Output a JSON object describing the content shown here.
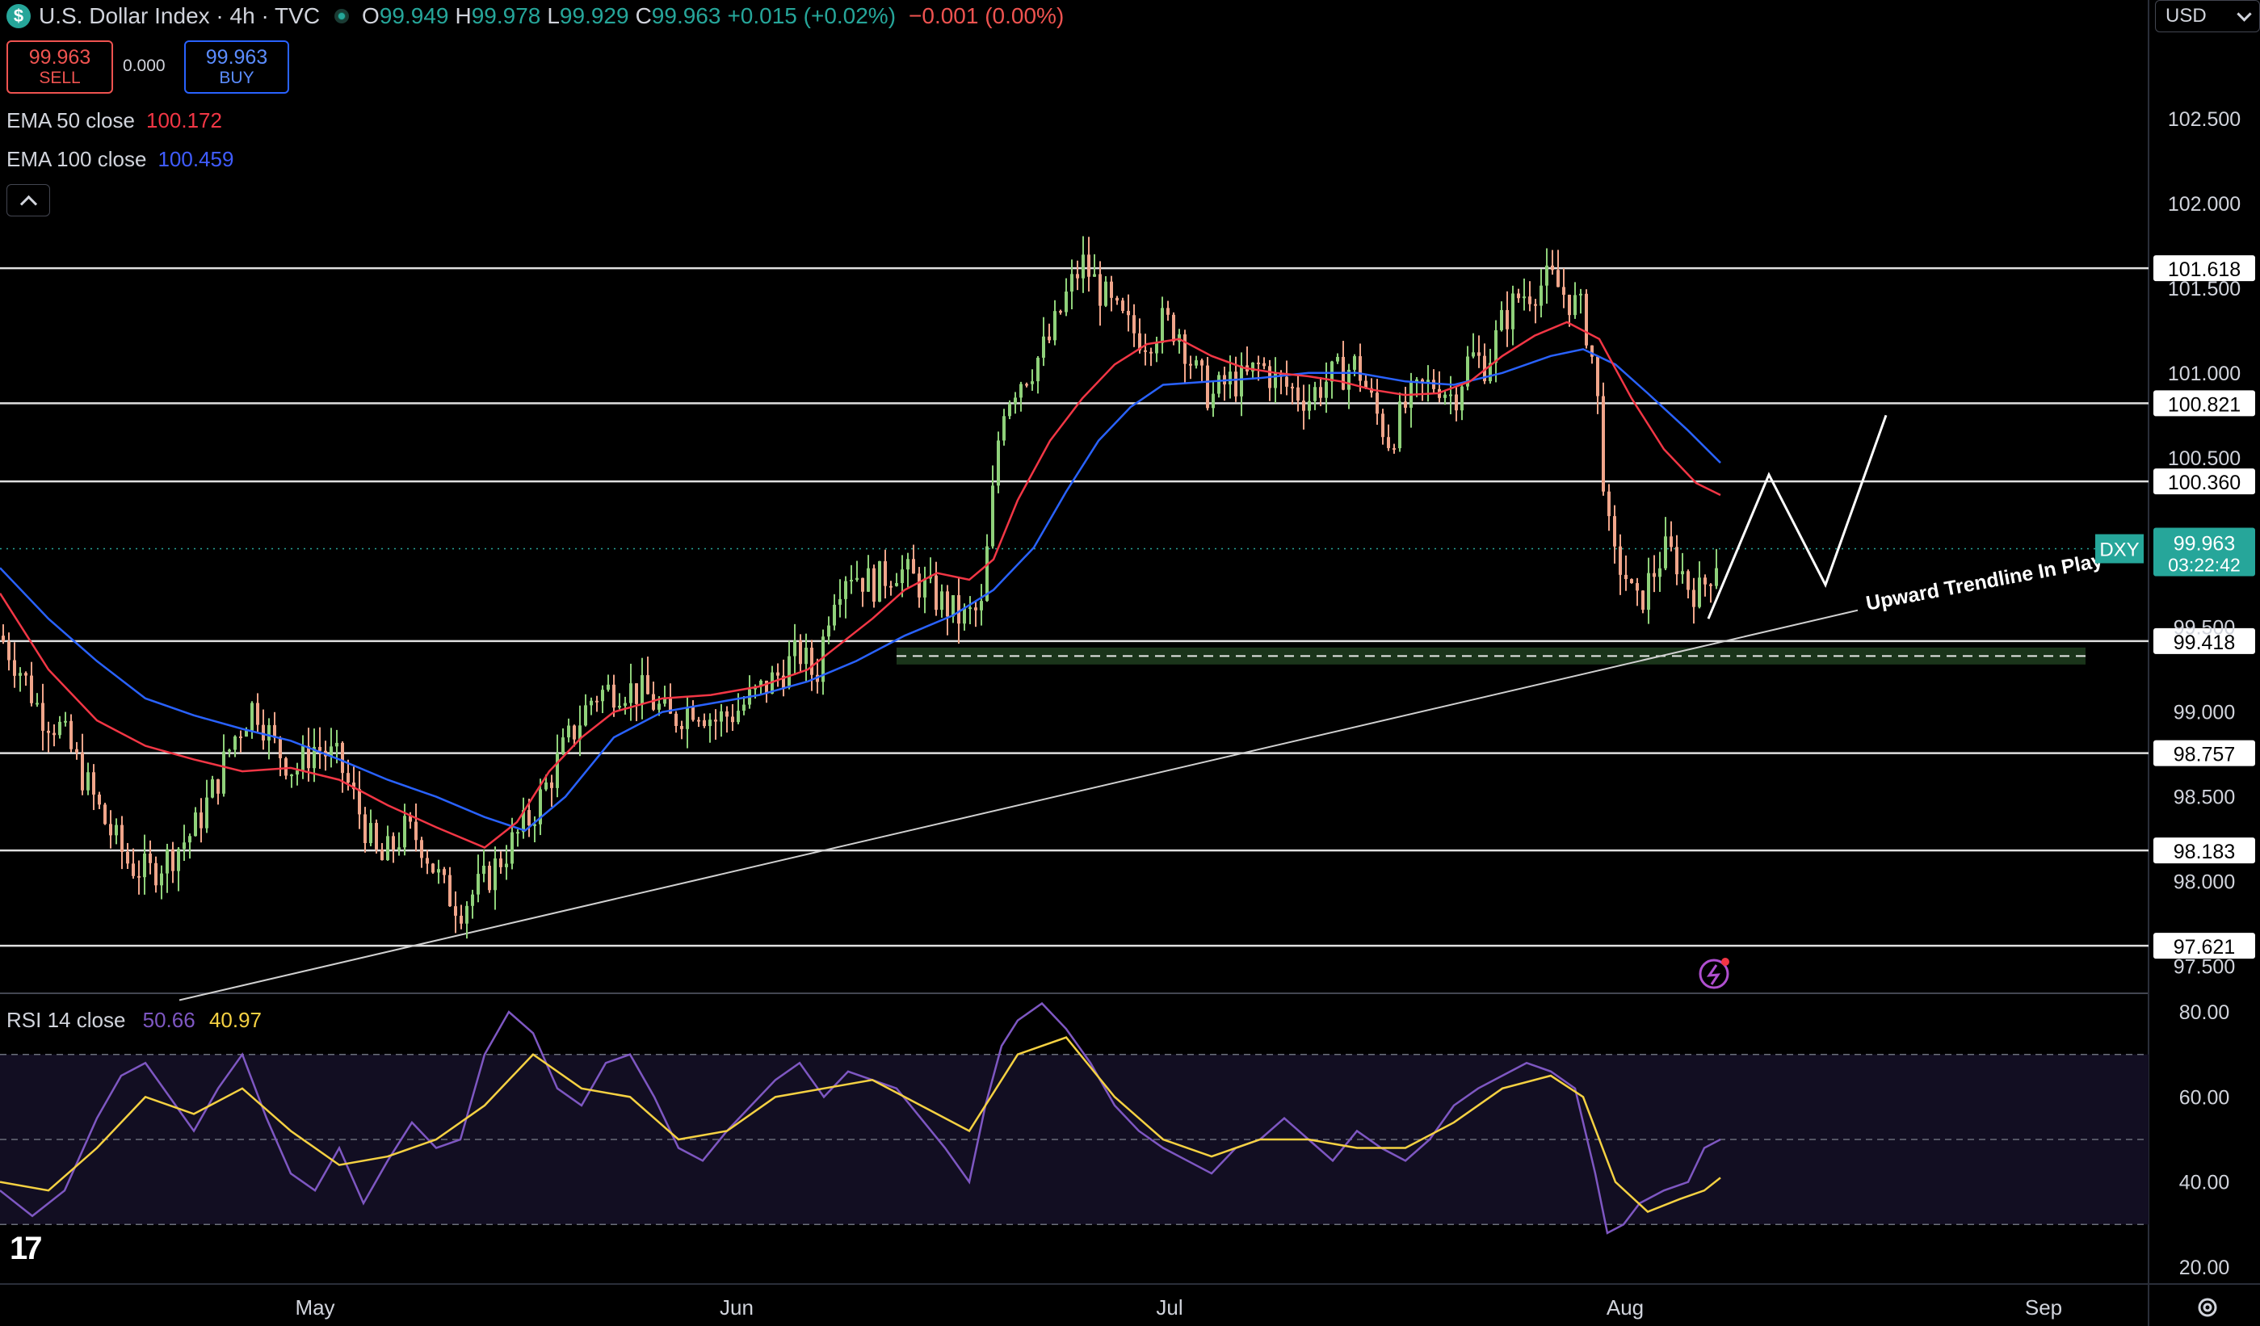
{
  "header": {
    "symbol_title": "U.S. Dollar Index · 4h · TVC",
    "open_label": "O",
    "open": "99.949",
    "high_label": "H",
    "high": "99.978",
    "low_label": "L",
    "low": "99.929",
    "close_label": "C",
    "close": "99.963",
    "change": "+0.015 (+0.02%)",
    "change2": "−0.001 (0.00%)",
    "logo_icon": "dollar-icon",
    "status_icon": "market-status-dot-icon"
  },
  "trade": {
    "sell_price": "99.963",
    "sell_label": "SELL",
    "spread": "0.000",
    "buy_price": "99.963",
    "buy_label": "BUY"
  },
  "indicators": {
    "ema50_label": "EMA 50 close",
    "ema50_value": "100.172",
    "ema50_color": "#f23645",
    "ema100_label": "EMA 100 close",
    "ema100_value": "100.459",
    "ema100_color": "#2962ff",
    "rsi_label": "RSI 14 close",
    "rsi_value": "50.66",
    "rsi_ma_value": "40.97",
    "rsi_color": "#7e57c2",
    "rsi_ma_color": "#f5d142"
  },
  "currency_selector": "USD",
  "chart_data": {
    "type": "candlestick",
    "timeframe": "4h",
    "y_axis": {
      "range": [
        97.35,
        103.2
      ],
      "ticks": [
        "102.500",
        "102.000",
        "101.500",
        "101.000",
        "100.500",
        "99.500",
        "99.000",
        "98.500",
        "98.000",
        "97.500"
      ]
    },
    "x_axis": {
      "tick_labels": [
        "May",
        "Jun",
        "Jul",
        "Aug",
        "Sep"
      ]
    },
    "price_path": [
      [
        0,
        99.45
      ],
      [
        25,
        99.25
      ],
      [
        50,
        99.0
      ],
      [
        75,
        98.9
      ],
      [
        100,
        98.65
      ],
      [
        130,
        98.35
      ],
      [
        160,
        98.1
      ],
      [
        185,
        98.05
      ],
      [
        210,
        98.15
      ],
      [
        240,
        98.3
      ],
      [
        265,
        98.55
      ],
      [
        290,
        98.85
      ],
      [
        315,
        99.05
      ],
      [
        340,
        98.8
      ],
      [
        365,
        98.65
      ],
      [
        390,
        98.8
      ],
      [
        420,
        98.7
      ],
      [
        450,
        98.35
      ],
      [
        470,
        98.1
      ],
      [
        500,
        98.3
      ],
      [
        520,
        98.25
      ],
      [
        550,
        97.95
      ],
      [
        570,
        97.85
      ],
      [
        600,
        98.0
      ],
      [
        630,
        98.2
      ],
      [
        660,
        98.4
      ],
      [
        700,
        98.8
      ],
      [
        735,
        99.1
      ],
      [
        770,
        99.15
      ],
      [
        800,
        99.1
      ],
      [
        830,
        98.95
      ],
      [
        860,
        99.05
      ],
      [
        885,
        98.95
      ],
      [
        910,
        99.0
      ],
      [
        935,
        99.1
      ],
      [
        960,
        99.2
      ],
      [
        990,
        99.35
      ],
      [
        1010,
        99.2
      ],
      [
        1030,
        99.7
      ],
      [
        1050,
        99.85
      ],
      [
        1080,
        99.75
      ],
      [
        1110,
        99.85
      ],
      [
        1140,
        99.75
      ],
      [
        1165,
        99.65
      ],
      [
        1190,
        99.55
      ],
      [
        1215,
        99.6
      ],
      [
        1240,
        100.8
      ],
      [
        1260,
        100.95
      ],
      [
        1280,
        101.05
      ],
      [
        1300,
        101.2
      ],
      [
        1320,
        101.45
      ],
      [
        1340,
        101.65
      ],
      [
        1360,
        101.5
      ],
      [
        1380,
        101.35
      ],
      [
        1400,
        101.25
      ],
      [
        1420,
        101.2
      ],
      [
        1440,
        101.3
      ],
      [
        1460,
        101.25
      ],
      [
        1480,
        101.0
      ],
      [
        1500,
        100.85
      ],
      [
        1520,
        100.95
      ],
      [
        1540,
        100.95
      ],
      [
        1560,
        101.05
      ],
      [
        1580,
        100.95
      ],
      [
        1600,
        100.9
      ],
      [
        1620,
        100.85
      ],
      [
        1640,
        100.95
      ],
      [
        1660,
        101.0
      ],
      [
        1680,
        101.05
      ],
      [
        1700,
        100.8
      ],
      [
        1720,
        100.6
      ],
      [
        1740,
        100.8
      ],
      [
        1760,
        100.9
      ],
      [
        1780,
        100.95
      ],
      [
        1800,
        100.85
      ],
      [
        1820,
        101.1
      ],
      [
        1840,
        101.05
      ],
      [
        1860,
        101.3
      ],
      [
        1880,
        101.45
      ],
      [
        1900,
        101.5
      ],
      [
        1920,
        101.55
      ],
      [
        1940,
        101.45
      ],
      [
        1960,
        101.35
      ],
      [
        1975,
        101.0
      ],
      [
        1985,
        100.4
      ],
      [
        1995,
        99.9
      ],
      [
        2010,
        99.85
      ],
      [
        2025,
        99.6
      ],
      [
        2040,
        99.75
      ],
      [
        2060,
        99.95
      ],
      [
        2075,
        99.9
      ],
      [
        2090,
        99.75
      ],
      [
        2105,
        99.7
      ],
      [
        2120,
        99.85
      ],
      [
        2130,
        99.96
      ]
    ],
    "ema50_path": [
      [
        0,
        99.7
      ],
      [
        60,
        99.25
      ],
      [
        120,
        98.95
      ],
      [
        180,
        98.8
      ],
      [
        240,
        98.72
      ],
      [
        300,
        98.65
      ],
      [
        360,
        98.67
      ],
      [
        420,
        98.6
      ],
      [
        480,
        98.45
      ],
      [
        540,
        98.32
      ],
      [
        600,
        98.2
      ],
      [
        640,
        98.35
      ],
      [
        680,
        98.65
      ],
      [
        720,
        98.85
      ],
      [
        760,
        99.0
      ],
      [
        820,
        99.08
      ],
      [
        880,
        99.1
      ],
      [
        940,
        99.15
      ],
      [
        1000,
        99.25
      ],
      [
        1040,
        99.4
      ],
      [
        1080,
        99.55
      ],
      [
        1120,
        99.72
      ],
      [
        1160,
        99.82
      ],
      [
        1200,
        99.78
      ],
      [
        1230,
        99.9
      ],
      [
        1260,
        100.25
      ],
      [
        1300,
        100.6
      ],
      [
        1340,
        100.85
      ],
      [
        1380,
        101.05
      ],
      [
        1420,
        101.17
      ],
      [
        1460,
        101.2
      ],
      [
        1500,
        101.1
      ],
      [
        1540,
        101.03
      ],
      [
        1580,
        101.0
      ],
      [
        1620,
        100.98
      ],
      [
        1660,
        100.95
      ],
      [
        1700,
        100.9
      ],
      [
        1740,
        100.87
      ],
      [
        1780,
        100.88
      ],
      [
        1820,
        100.95
      ],
      [
        1860,
        101.1
      ],
      [
        1900,
        101.22
      ],
      [
        1940,
        101.3
      ],
      [
        1980,
        101.2
      ],
      [
        2020,
        100.85
      ],
      [
        2060,
        100.55
      ],
      [
        2100,
        100.35
      ],
      [
        2130,
        100.28
      ]
    ],
    "ema100_path": [
      [
        0,
        99.85
      ],
      [
        60,
        99.55
      ],
      [
        120,
        99.3
      ],
      [
        180,
        99.08
      ],
      [
        240,
        98.98
      ],
      [
        300,
        98.9
      ],
      [
        360,
        98.83
      ],
      [
        420,
        98.72
      ],
      [
        480,
        98.6
      ],
      [
        540,
        98.5
      ],
      [
        600,
        98.38
      ],
      [
        650,
        98.3
      ],
      [
        700,
        98.5
      ],
      [
        760,
        98.85
      ],
      [
        820,
        99.0
      ],
      [
        880,
        99.05
      ],
      [
        940,
        99.1
      ],
      [
        1000,
        99.18
      ],
      [
        1060,
        99.3
      ],
      [
        1120,
        99.45
      ],
      [
        1180,
        99.57
      ],
      [
        1230,
        99.72
      ],
      [
        1280,
        99.97
      ],
      [
        1320,
        100.3
      ],
      [
        1360,
        100.6
      ],
      [
        1400,
        100.8
      ],
      [
        1440,
        100.93
      ],
      [
        1500,
        100.95
      ],
      [
        1560,
        100.97
      ],
      [
        1620,
        101.0
      ],
      [
        1680,
        101.0
      ],
      [
        1740,
        100.95
      ],
      [
        1800,
        100.93
      ],
      [
        1860,
        101.0
      ],
      [
        1920,
        101.1
      ],
      [
        1960,
        101.14
      ],
      [
        2000,
        101.05
      ],
      [
        2040,
        100.88
      ],
      [
        2090,
        100.66
      ],
      [
        2130,
        100.47
      ]
    ],
    "horizontal_levels": [
      {
        "label": "101.618",
        "value": 101.618
      },
      {
        "label": "100.821",
        "value": 100.821
      },
      {
        "label": "100.360",
        "value": 100.36
      },
      {
        "label": "99.418",
        "value": 99.418
      },
      {
        "label": "98.757",
        "value": 98.757
      },
      {
        "label": "98.183",
        "value": 98.183
      },
      {
        "label": "97.621",
        "value": 97.621
      }
    ],
    "last_price": {
      "symbol": "DXY",
      "value": "99.963",
      "countdown": "03:22:42",
      "price": 99.963,
      "color": "#26a69a"
    },
    "support_zone": {
      "from": 99.28,
      "to": 99.38
    },
    "trendline": {
      "from": [
        0,
        97.3
      ],
      "to": [
        2300,
        99.6
      ]
    },
    "projection_path": [
      [
        2115,
        99.55
      ],
      [
        2190,
        100.4
      ],
      [
        2260,
        99.75
      ],
      [
        2335,
        100.75
      ]
    ],
    "annotation": {
      "text": "Upward Trendline In Play"
    },
    "rsi": {
      "y_ticks": [
        "80.00",
        "60.00",
        "40.00",
        "20.00"
      ],
      "range": [
        16,
        84
      ],
      "bands": [
        30,
        50,
        70
      ],
      "rsi_path": [
        [
          0,
          38
        ],
        [
          40,
          32
        ],
        [
          80,
          38
        ],
        [
          120,
          55
        ],
        [
          150,
          65
        ],
        [
          180,
          68
        ],
        [
          210,
          60
        ],
        [
          240,
          52
        ],
        [
          270,
          62
        ],
        [
          300,
          70
        ],
        [
          330,
          55
        ],
        [
          360,
          42
        ],
        [
          390,
          38
        ],
        [
          420,
          48
        ],
        [
          450,
          35
        ],
        [
          480,
          45
        ],
        [
          510,
          54
        ],
        [
          540,
          48
        ],
        [
          570,
          50
        ],
        [
          600,
          70
        ],
        [
          630,
          80
        ],
        [
          660,
          75
        ],
        [
          690,
          62
        ],
        [
          720,
          58
        ],
        [
          750,
          68
        ],
        [
          780,
          70
        ],
        [
          810,
          60
        ],
        [
          840,
          48
        ],
        [
          870,
          45
        ],
        [
          900,
          52
        ],
        [
          930,
          58
        ],
        [
          960,
          64
        ],
        [
          990,
          68
        ],
        [
          1020,
          60
        ],
        [
          1050,
          66
        ],
        [
          1080,
          64
        ],
        [
          1110,
          62
        ],
        [
          1140,
          55
        ],
        [
          1170,
          48
        ],
        [
          1200,
          40
        ],
        [
          1220,
          58
        ],
        [
          1240,
          72
        ],
        [
          1260,
          78
        ],
        [
          1290,
          82
        ],
        [
          1320,
          76
        ],
        [
          1350,
          68
        ],
        [
          1380,
          58
        ],
        [
          1410,
          52
        ],
        [
          1440,
          48
        ],
        [
          1470,
          45
        ],
        [
          1500,
          42
        ],
        [
          1530,
          48
        ],
        [
          1560,
          50
        ],
        [
          1590,
          55
        ],
        [
          1620,
          50
        ],
        [
          1650,
          45
        ],
        [
          1680,
          52
        ],
        [
          1710,
          48
        ],
        [
          1740,
          45
        ],
        [
          1770,
          50
        ],
        [
          1800,
          58
        ],
        [
          1830,
          62
        ],
        [
          1860,
          65
        ],
        [
          1890,
          68
        ],
        [
          1920,
          66
        ],
        [
          1950,
          62
        ],
        [
          1975,
          42
        ],
        [
          1990,
          28
        ],
        [
          2010,
          30
        ],
        [
          2030,
          35
        ],
        [
          2060,
          38
        ],
        [
          2090,
          40
        ],
        [
          2110,
          48
        ],
        [
          2130,
          50
        ]
      ],
      "rsi_ma_path": [
        [
          0,
          40
        ],
        [
          60,
          38
        ],
        [
          120,
          48
        ],
        [
          180,
          60
        ],
        [
          240,
          56
        ],
        [
          300,
          62
        ],
        [
          360,
          52
        ],
        [
          420,
          44
        ],
        [
          480,
          46
        ],
        [
          540,
          50
        ],
        [
          600,
          58
        ],
        [
          660,
          70
        ],
        [
          720,
          62
        ],
        [
          780,
          60
        ],
        [
          840,
          50
        ],
        [
          900,
          52
        ],
        [
          960,
          60
        ],
        [
          1020,
          62
        ],
        [
          1080,
          64
        ],
        [
          1140,
          58
        ],
        [
          1200,
          52
        ],
        [
          1260,
          70
        ],
        [
          1320,
          74
        ],
        [
          1380,
          60
        ],
        [
          1440,
          50
        ],
        [
          1500,
          46
        ],
        [
          1560,
          50
        ],
        [
          1620,
          50
        ],
        [
          1680,
          48
        ],
        [
          1740,
          48
        ],
        [
          1800,
          54
        ],
        [
          1860,
          62
        ],
        [
          1920,
          65
        ],
        [
          1960,
          60
        ],
        [
          2000,
          40
        ],
        [
          2040,
          33
        ],
        [
          2080,
          36
        ],
        [
          2110,
          38
        ],
        [
          2130,
          41
        ]
      ]
    }
  }
}
